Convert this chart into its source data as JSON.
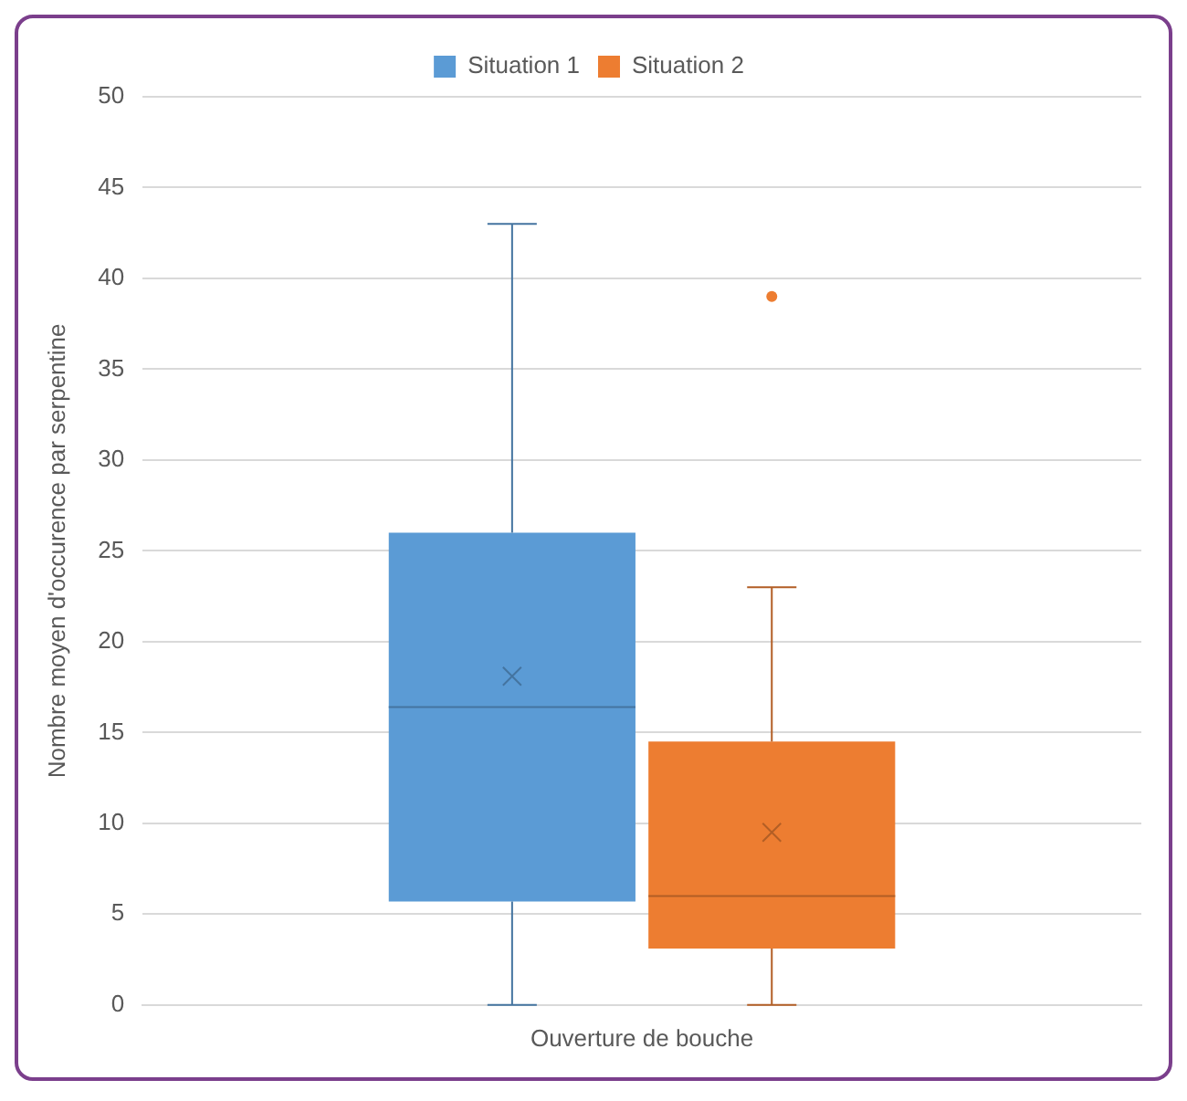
{
  "chart_data": {
    "type": "box",
    "categories": [
      "Ouverture de bouche"
    ],
    "ylabel": "Nombre moyen d'occurence par serpentine",
    "ylim": [
      0,
      50
    ],
    "yticks": [
      0,
      5,
      10,
      15,
      20,
      25,
      30,
      35,
      40,
      45,
      50
    ],
    "grid": "y",
    "legend": "top",
    "series": [
      {
        "name": "Situation 1",
        "color": "#5b9bd5",
        "boxes": [
          {
            "low": 0,
            "q1": 5.7,
            "median": 16.4,
            "q3": 26,
            "high": 43,
            "mean": 18.1
          }
        ]
      },
      {
        "name": "Situation 2",
        "color": "#ed7d31",
        "boxes": [
          {
            "low": 0,
            "q1": 3.1,
            "median": 6,
            "q3": 14.5,
            "high": 23,
            "mean": 9.5,
            "outliers": [
              39
            ]
          }
        ]
      }
    ]
  }
}
